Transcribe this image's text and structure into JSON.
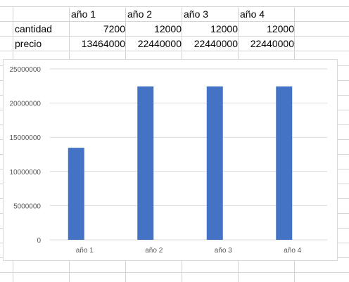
{
  "sheet": {
    "headers": [
      "año 1",
      "año 2",
      "año 3",
      "año 4"
    ],
    "rows": [
      {
        "label": "cantidad",
        "values": [
          "7200",
          "12000",
          "12000",
          "12000"
        ]
      },
      {
        "label": "precio",
        "values": [
          "13464000",
          "22440000",
          "22440000",
          "22440000"
        ]
      }
    ]
  },
  "chart_data": {
    "type": "bar",
    "categories": [
      "año 1",
      "año 2",
      "año 3",
      "año 4"
    ],
    "series": [
      {
        "values": [
          13464000,
          22440000,
          22440000,
          22440000
        ],
        "color": "#4472C4"
      }
    ],
    "y_ticks": [
      "0",
      "5000000",
      "10000000",
      "15000000",
      "20000000",
      "25000000"
    ],
    "ylim": [
      0,
      25000000
    ],
    "grid": true,
    "legend": "none"
  }
}
